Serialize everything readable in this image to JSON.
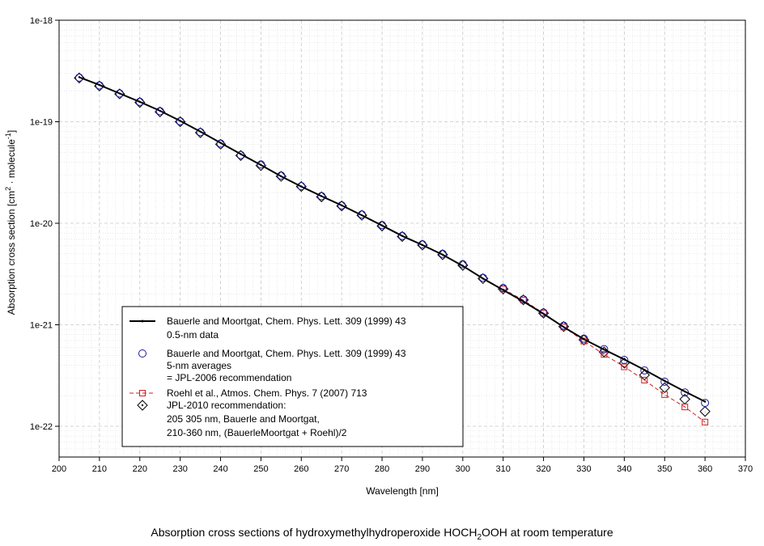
{
  "chart_data": {
    "type": "line",
    "xlabel": "Wavelength [nm]",
    "ylabel": {
      "main": "Absorption cross section [cm",
      "sup1": "2",
      "mid": " · molecule",
      "sup2": "-1",
      "end": "]"
    },
    "xlim": [
      200,
      370
    ],
    "ylim": [
      1e-22,
      1e-18
    ],
    "yscale": "log",
    "xticks": [
      "200",
      "210",
      "220",
      "230",
      "240",
      "250",
      "260",
      "270",
      "280",
      "290",
      "300",
      "310",
      "320",
      "330",
      "340",
      "350",
      "360",
      "370"
    ],
    "yticks": [
      "1e-22",
      "1e-21",
      "1e-20",
      "1e-19",
      "1e-18"
    ],
    "grid": true,
    "legend_position": "lower-left",
    "series": [
      {
        "name": "Bauerle and  Moortgat, Chem. Phys. Lett. 309 (1999) 43",
        "name2": "0.5-nm data",
        "style": "line-small-dots",
        "color": "#000000",
        "x": [
          205,
          210,
          215,
          220,
          225,
          230,
          235,
          240,
          245,
          250,
          255,
          260,
          265,
          270,
          275,
          280,
          285,
          290,
          295,
          300,
          305,
          310,
          315,
          320,
          325,
          330,
          335,
          340,
          345,
          350,
          355,
          360
        ],
        "y": [
          2.75e-19,
          2.3e-19,
          1.9e-19,
          1.57e-19,
          1.28e-19,
          1.02e-19,
          8e-20,
          6.2e-20,
          4.8e-20,
          3.75e-20,
          2.9e-20,
          2.3e-20,
          1.85e-20,
          1.5e-20,
          1.2e-20,
          9.5e-21,
          7.5e-21,
          6.1e-21,
          4.9e-21,
          3.8e-21,
          2.85e-21,
          2.2e-21,
          1.7e-21,
          1.28e-21,
          9.5e-22,
          7.2e-22,
          5.7e-22,
          4.55e-22,
          3.6e-22,
          2.8e-22,
          2.2e-22,
          1.75e-22
        ]
      },
      {
        "name": "Bauerle and  Moortgat, Chem. Phys. Lett. 309 (1999) 43",
        "name2": "5-nm averages",
        "name3": "= JPL-2006 recommendation",
        "style": "open-circles",
        "color": "#1a1aa0",
        "x": [
          205,
          210,
          215,
          220,
          225,
          230,
          235,
          240,
          245,
          250,
          255,
          260,
          265,
          270,
          275,
          280,
          285,
          290,
          295,
          300,
          305,
          310,
          315,
          320,
          325,
          330,
          335,
          340,
          345,
          350,
          355,
          360
        ],
        "y": [
          2.72e-19,
          2.28e-19,
          1.9e-19,
          1.57e-19,
          1.27e-19,
          1.01e-19,
          7.9e-20,
          6.1e-20,
          4.7e-20,
          3.8e-20,
          2.95e-20,
          2.32e-20,
          1.85e-20,
          1.5e-20,
          1.22e-20,
          9.6e-21,
          7.5e-21,
          6.2e-21,
          5e-21,
          3.95e-21,
          2.9e-21,
          2.3e-21,
          1.78e-21,
          1.32e-21,
          9.8e-22,
          7.3e-22,
          5.75e-22,
          4.5e-22,
          3.55e-22,
          2.75e-22,
          2.15e-22,
          1.7e-22
        ]
      },
      {
        "name": "Roehl et al., Atmos. Chem. Phys. 7 (2007) 713",
        "style": "dashed-squares",
        "color": "#d02020",
        "x": [
          310,
          315,
          320,
          325,
          330,
          335,
          340,
          345,
          350,
          355,
          360
        ],
        "y": [
          2.25e-21,
          1.75e-21,
          1.3e-21,
          9.5e-22,
          6.9e-22,
          5.1e-22,
          3.85e-22,
          2.85e-22,
          2.05e-22,
          1.55e-22,
          1.1e-22
        ]
      },
      {
        "name": "JPL-2010 recommendation:",
        "name2": "205 305 nm, Bauerle and Moortgat,",
        "name3": "210-360 nm, (BauerleMoortgat + Roehl)/2",
        "style": "open-diamonds",
        "color": "#000000",
        "x": [
          205,
          210,
          215,
          220,
          225,
          230,
          235,
          240,
          245,
          250,
          255,
          260,
          265,
          270,
          275,
          280,
          285,
          290,
          295,
          300,
          305,
          310,
          315,
          320,
          325,
          330,
          335,
          340,
          345,
          350,
          355,
          360
        ],
        "y": [
          2.7e-19,
          2.25e-19,
          1.88e-19,
          1.55e-19,
          1.25e-19,
          1e-19,
          7.8e-20,
          6e-20,
          4.65e-20,
          3.7e-20,
          2.9e-20,
          2.3e-20,
          1.82e-20,
          1.48e-20,
          1.2e-20,
          9.4e-21,
          7.4e-21,
          6.1e-21,
          4.9e-21,
          3.85e-21,
          2.85e-21,
          2.25e-21,
          1.76e-21,
          1.3e-21,
          9.6e-22,
          7.1e-22,
          5.4e-22,
          4.2e-22,
          3.2e-22,
          2.4e-22,
          1.85e-22,
          1.4e-22
        ]
      }
    ]
  },
  "caption": {
    "pre": "Absorption cross sections of hydroxymethylhydroperoxide HOCH",
    "sub": "2",
    "post": "OOH at room temperature"
  }
}
